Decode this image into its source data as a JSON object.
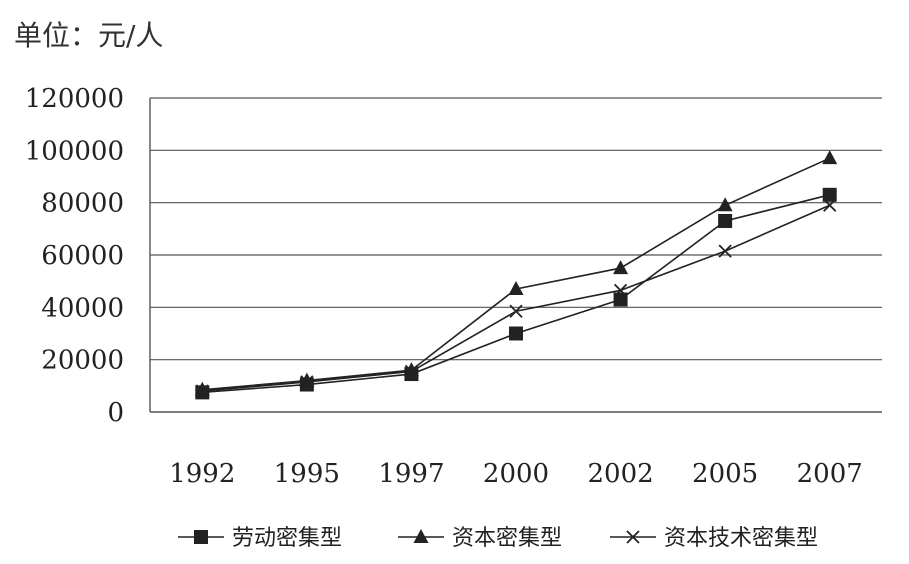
{
  "unit_label": "单位：元/人",
  "chart_data": {
    "type": "line",
    "categories": [
      "1992",
      "1995",
      "1997",
      "2000",
      "2002",
      "2005",
      "2007"
    ],
    "ylim": [
      0,
      120000
    ],
    "yticks": [
      0,
      20000,
      40000,
      60000,
      80000,
      100000,
      120000
    ],
    "ytick_labels": [
      "0",
      "20000",
      "40000",
      "60000",
      "80000",
      "100000",
      "120000"
    ],
    "grid": true,
    "legend_position": "bottom",
    "series": [
      {
        "name": "劳动密集型",
        "marker": "square",
        "color": "#222222",
        "values": [
          7500,
          10500,
          14500,
          30000,
          43000,
          73000,
          83000
        ]
      },
      {
        "name": "资本密集型",
        "marker": "triangle",
        "color": "#222222",
        "values": [
          8500,
          12000,
          16000,
          47000,
          55000,
          79000,
          97000
        ]
      },
      {
        "name": "资本技术密集型",
        "marker": "x",
        "color": "#222222",
        "values": [
          8000,
          11500,
          15500,
          38500,
          46500,
          61500,
          79000
        ]
      }
    ]
  }
}
